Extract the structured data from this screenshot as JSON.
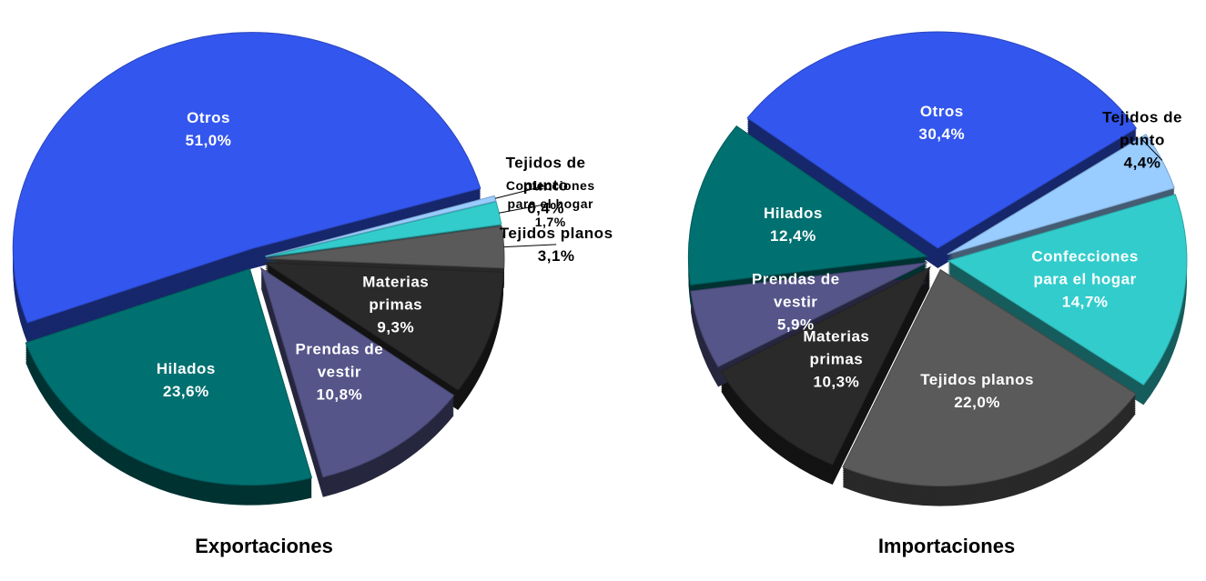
{
  "chart_data": [
    {
      "type": "pie",
      "title": "Exportaciones",
      "categories": [
        "Otros",
        "Tejidos de punto",
        "Confecciones para el hogar",
        "Tejidos planos",
        "Materias primas",
        "Prendas de vestir",
        "Hilados"
      ],
      "values": [
        51.0,
        0.4,
        1.7,
        3.1,
        9.3,
        10.8,
        23.6
      ],
      "value_labels": [
        "51,0%",
        "0,4%",
        "1,7%",
        "3,1%",
        "9,3%",
        "10,8%",
        "23,6%"
      ],
      "colors": [
        "#3356ee",
        "#99ccff",
        "#33cccc",
        "#5a5a5a",
        "#2a2a2a",
        "#55558a",
        "#007070"
      ]
    },
    {
      "type": "pie",
      "title": "Importaciones",
      "categories": [
        "Otros",
        "Tejidos de punto",
        "Confecciones para el hogar",
        "Tejidos planos",
        "Materias primas",
        "Prendas de vestir",
        "Hilados"
      ],
      "values": [
        30.4,
        4.4,
        14.7,
        22.0,
        10.3,
        5.9,
        12.4
      ],
      "value_labels": [
        "30,4%",
        "4,4%",
        "14,7%",
        "22,0%",
        "10,3%",
        "5,9%",
        "12,4%"
      ],
      "colors": [
        "#3356ee",
        "#99ccff",
        "#33cccc",
        "#5a5a5a",
        "#2a2a2a",
        "#55558a",
        "#007070"
      ]
    }
  ]
}
